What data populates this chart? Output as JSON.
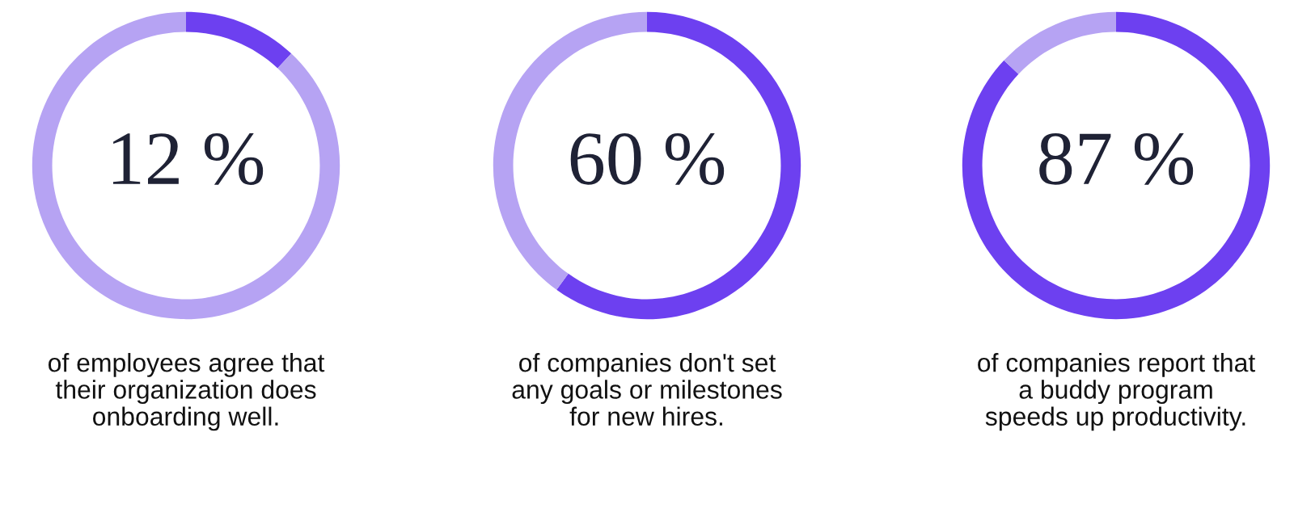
{
  "chart_data": [
    {
      "type": "donut",
      "categories": [
        null,
        null
      ],
      "values": [
        12,
        88
      ],
      "colors": [
        "#6d40f0",
        "#b6a3f3"
      ],
      "value_labels": [
        "12 %",
        null
      ],
      "annotations": [
        "of employees agree that\ntheir organization does\nonboarding well."
      ]
    },
    {
      "type": "donut",
      "categories": [
        null,
        null
      ],
      "values": [
        60,
        40
      ],
      "colors": [
        "#6d40f0",
        "#b6a3f3"
      ],
      "value_labels": [
        "60 %",
        null
      ],
      "annotations": [
        "of companies don't set\nany goals or milestones\nfor new hires."
      ]
    },
    {
      "type": "donut",
      "categories": [
        null,
        null
      ],
      "values": [
        87,
        13
      ],
      "colors": [
        "#6d40f0",
        "#b6a3f3"
      ],
      "value_labels": [
        "87 %",
        null
      ],
      "annotations": [
        "of companies report that\na buddy program\nspeeds up productivity."
      ]
    }
  ]
}
